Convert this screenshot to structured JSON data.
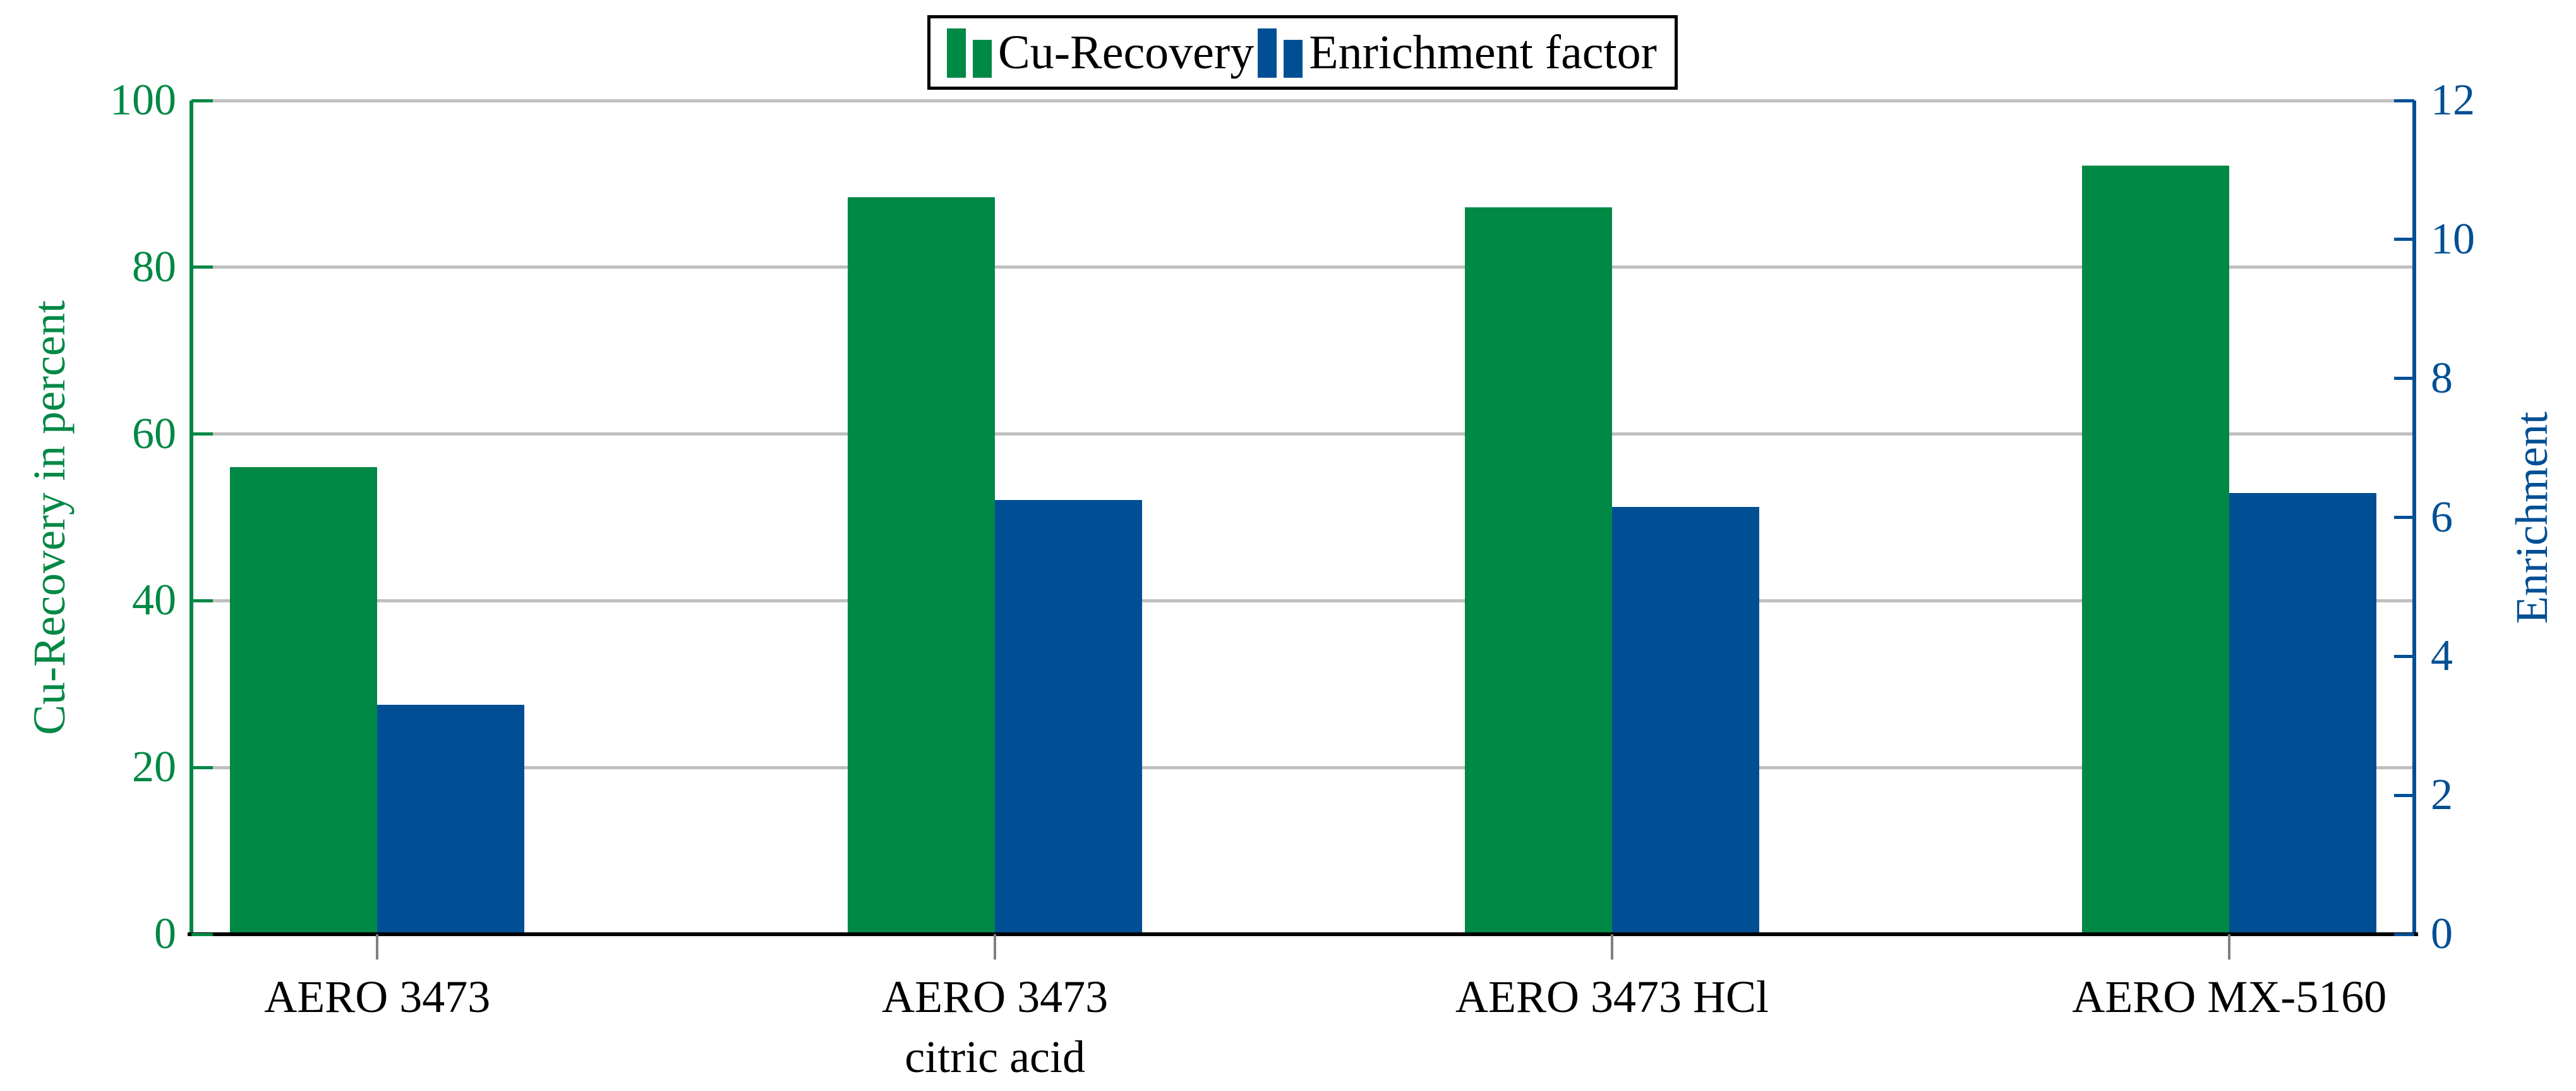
{
  "chart_data": {
    "type": "bar",
    "title": "",
    "categories": [
      [
        "AERO 3473"
      ],
      [
        "AERO 3473",
        "citric acid"
      ],
      [
        "AERO 3473 HCl"
      ],
      [
        "AERO MX-5160"
      ]
    ],
    "series": [
      {
        "name": "Cu-Recovery",
        "axis": "left",
        "color": "#008845",
        "values": [
          56,
          88.4,
          87.2,
          92.2
        ]
      },
      {
        "name": "Enrichment factor",
        "axis": "right",
        "color": "#004F94",
        "values": [
          3.3,
          6.25,
          6.15,
          6.35
        ]
      }
    ],
    "left_axis": {
      "label": "Cu-Recovery in percent",
      "min": 0,
      "max": 100,
      "ticks": [
        0,
        20,
        40,
        60,
        80,
        100
      ],
      "color": "#008845"
    },
    "right_axis": {
      "label": "Enrichment",
      "min": 0,
      "max": 12,
      "ticks": [
        0,
        2,
        4,
        6,
        8,
        10,
        12
      ],
      "color": "#004F94"
    },
    "grid": {
      "on": true,
      "color": "#BFBFBF",
      "levels_left": [
        20,
        40,
        60,
        80,
        100
      ]
    },
    "baseline_color": "#000000",
    "x_tick_color": "#808080",
    "legend": {
      "position": "top-center",
      "entries": [
        "Cu-Recovery",
        "Enrichment factor"
      ]
    }
  }
}
